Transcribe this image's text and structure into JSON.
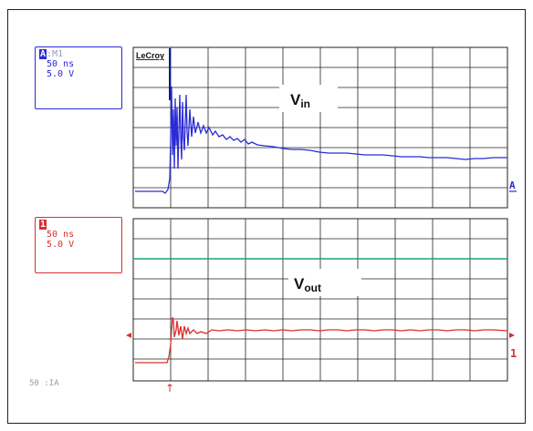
{
  "scope": {
    "brand": "LeCroy",
    "channel1": {
      "tag": "A",
      "extra": ":M1",
      "timebase": "50 ns",
      "volts": "5.0 V",
      "color": "#2a2ad8",
      "marker": "A"
    },
    "channel2": {
      "tag": "1",
      "timebase": "50 ns",
      "volts": "5.0 V",
      "color": "#d83030",
      "marker": "1"
    },
    "label_top": {
      "main": "V",
      "sub": "in"
    },
    "label_bottom": {
      "main": "V",
      "sub": "out"
    },
    "footer_text": "50 :IA",
    "trigger_marker": "↑"
  }
}
